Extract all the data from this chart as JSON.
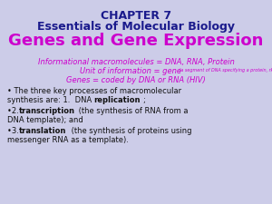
{
  "bg_color": "#cccce8",
  "dark_blue": "#1a1a8c",
  "magenta": "#cc00cc",
  "black": "#111111",
  "title1": "CHAPTER 7",
  "title2": "Essentials of Molecular Biology",
  "title3": "Genes and Gene Expression",
  "info1": "Informational macromolecules = DNA, RNA, Protein",
  "info2a": "Unit of information = gene",
  "info2b": " (a segment of DNA specifying a protein, rRNA or tRNA)",
  "info3": "Genes = coded by DNA or RNA (HIV)"
}
